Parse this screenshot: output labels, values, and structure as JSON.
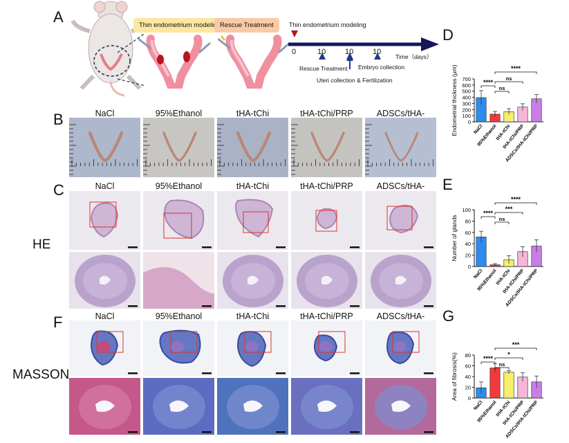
{
  "panels": {
    "A": "A",
    "B": "B",
    "C": "C",
    "D": "D",
    "E": "E",
    "F": "F",
    "G": "G"
  },
  "stains": {
    "he": "HE",
    "masson": "MASSON"
  },
  "groups": [
    "NaCl",
    "95%Ethanol",
    "tHA-tChi",
    "tHA-tChi/PRP",
    "ADSCs/tHA-tChi/PRP"
  ],
  "schematic": {
    "modeling_label": "Thin endometrium modeling",
    "rescue_label": "Rescue Treatment",
    "timeline_top": "Thin endometrium modeling",
    "ticks": [
      "0",
      "10",
      "10",
      "10"
    ],
    "time_label": "Time（days）",
    "below_1": "Rescue Treatment",
    "below_2": "Uteri collection & Fertilization",
    "below_3": "Embryo collection"
  },
  "colors": {
    "NaCl": "#2d8cf0",
    "95%Ethanol": "#f23a3a",
    "tHA-tChi": "#f7ef6a",
    "tHA-tChi/PRP": "#f6b6d8",
    "ADSCs/tHA-tChi/PRP": "#c97ee6"
  },
  "chart_data": [
    {
      "type": "bar",
      "panel": "D",
      "categories": [
        "NaCl",
        "95%Ethanol",
        "tHA-tChi",
        "tHA-tChi/PRP",
        "ADSCs/tHA-tChi/PRP"
      ],
      "values": [
        395,
        125,
        165,
        240,
        375
      ],
      "errors": [
        115,
        45,
        50,
        55,
        70
      ],
      "ylabel": "Endometrial thickness (μm)",
      "ylim": [
        0,
        700
      ],
      "yticks": [
        "0",
        "100",
        "200",
        "300",
        "400",
        "500",
        "600",
        "700"
      ],
      "significance": [
        {
          "from": 0,
          "to": 1,
          "label": "****"
        },
        {
          "from": 1,
          "to": 2,
          "label": "ns"
        },
        {
          "from": 1,
          "to": 3,
          "label": "ns"
        },
        {
          "from": 1,
          "to": 4,
          "label": "****"
        }
      ]
    },
    {
      "type": "bar",
      "panel": "E",
      "categories": [
        "NaCl",
        "95%Ethanol",
        "tHA-tChi",
        "tHA-tChi/PRP",
        "ADSCs/tHA-tChi/PRP"
      ],
      "values": [
        52,
        3,
        12,
        26,
        36
      ],
      "errors": [
        10,
        2,
        7,
        9,
        11
      ],
      "ylabel": "Number of glands",
      "ylim": [
        0,
        100
      ],
      "yticks": [
        "0",
        "20",
        "40",
        "60",
        "80",
        "100"
      ],
      "significance": [
        {
          "from": 0,
          "to": 1,
          "label": "****"
        },
        {
          "from": 1,
          "to": 2,
          "label": "ns"
        },
        {
          "from": 1,
          "to": 3,
          "label": "***"
        },
        {
          "from": 1,
          "to": 4,
          "label": "****"
        }
      ]
    },
    {
      "type": "bar",
      "panel": "G",
      "categories": [
        "NaCl",
        "95%Ethanol",
        "tHA-tChi",
        "tHA-tChi/PRP",
        "ADSCs/tHA-tChi/PRP"
      ],
      "values": [
        19,
        56,
        48,
        39,
        30
      ],
      "errors": [
        11,
        8,
        3,
        8,
        11
      ],
      "ylabel": "Area of fibrosis(%)",
      "ylim": [
        0,
        80
      ],
      "yticks": [
        "0",
        "20",
        "40",
        "60",
        "80"
      ],
      "significance": [
        {
          "from": 0,
          "to": 1,
          "label": "****"
        },
        {
          "from": 1,
          "to": 2,
          "label": "ns"
        },
        {
          "from": 1,
          "to": 3,
          "label": "*"
        },
        {
          "from": 1,
          "to": 4,
          "label": "***"
        }
      ]
    }
  ]
}
